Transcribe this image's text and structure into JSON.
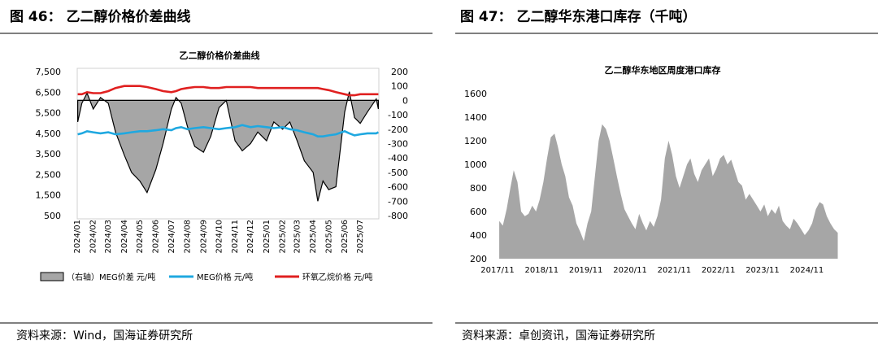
{
  "left": {
    "figure_title": "图 46： 乙二醇价格价差曲线",
    "source": "资料来源：Wind，国海证券研究所"
  },
  "right": {
    "figure_title": "图 47： 乙二醇华东港口库存（千吨）",
    "source": "资料来源：卓创资讯，国海证券研究所"
  },
  "chart_data": [
    {
      "type": "line",
      "title": "乙二醇价格价差曲线",
      "y_left_ticks": [
        "7,500",
        "6,500",
        "5,500",
        "4,500",
        "3,500",
        "2,500",
        "1,500",
        "500"
      ],
      "ylim_left": [
        500,
        7500
      ],
      "y_right_ticks": [
        "200",
        "100",
        "0",
        "-100",
        "-200",
        "-300",
        "-400",
        "-500",
        "-600",
        "-700",
        "-800"
      ],
      "ylim_right": [
        -800,
        200
      ],
      "x_ticks": [
        "2024/01",
        "2024/02",
        "2024/03",
        "2024/04",
        "2024/05",
        "2024/06",
        "2024/07",
        "2024/08",
        "2024/09",
        "2024/10",
        "2024/11",
        "2024/12",
        "2025/01",
        "2025/02",
        "2025/03",
        "2025/04",
        "2025/05",
        "2025/06",
        "2025/07"
      ],
      "x": [
        "2024-01-02",
        "2024-01-10",
        "2024-01-20",
        "2024-02-01",
        "2024-02-15",
        "2024-03-01",
        "2024-03-15",
        "2024-04-01",
        "2024-04-15",
        "2024-05-01",
        "2024-05-15",
        "2024-06-01",
        "2024-06-15",
        "2024-07-01",
        "2024-07-10",
        "2024-07-20",
        "2024-08-01",
        "2024-08-15",
        "2024-09-01",
        "2024-09-15",
        "2024-10-01",
        "2024-10-15",
        "2024-11-01",
        "2024-11-15",
        "2024-12-01",
        "2024-12-15",
        "2025-01-01",
        "2025-01-15",
        "2025-02-01",
        "2025-02-15",
        "2025-03-01",
        "2025-03-15",
        "2025-04-01",
        "2025-04-10",
        "2025-04-20",
        "2025-05-01",
        "2025-05-15",
        "2025-06-01",
        "2025-06-10",
        "2025-06-20",
        "2025-07-01",
        "2025-07-15",
        "2025-08-01",
        "2025-08-05"
      ],
      "series": [
        {
          "name": "（右轴）MEG价差 元/吨",
          "axis": "right",
          "kind": "area",
          "color": "#a6a6a6",
          "values": [
            -150,
            -20,
            50,
            -60,
            20,
            -20,
            -220,
            -380,
            -500,
            -560,
            -640,
            -480,
            -300,
            -60,
            20,
            -20,
            -180,
            -320,
            -360,
            -250,
            -50,
            0,
            -280,
            -350,
            -300,
            -220,
            -280,
            -150,
            -200,
            -150,
            -280,
            -420,
            -500,
            -700,
            -560,
            -620,
            -600,
            -80,
            60,
            -120,
            -160,
            -80,
            10,
            -60
          ]
        },
        {
          "name": "MEG价格 元/吨",
          "axis": "left",
          "kind": "line",
          "color": "#1fa8e0",
          "values": [
            4450,
            4500,
            4600,
            4550,
            4500,
            4550,
            4450,
            4500,
            4550,
            4600,
            4600,
            4650,
            4700,
            4650,
            4750,
            4800,
            4700,
            4750,
            4800,
            4750,
            4700,
            4750,
            4800,
            4900,
            4800,
            4850,
            4800,
            4750,
            4800,
            4700,
            4650,
            4550,
            4450,
            4350,
            4350,
            4400,
            4450,
            4600,
            4500,
            4400,
            4450,
            4500,
            4500,
            4550
          ]
        },
        {
          "name": "环氧乙烷价格 元/吨",
          "axis": "left",
          "kind": "line",
          "color": "#e02020",
          "values": [
            6400,
            6400,
            6500,
            6450,
            6450,
            6550,
            6700,
            6800,
            6800,
            6800,
            6750,
            6650,
            6550,
            6500,
            6550,
            6650,
            6700,
            6750,
            6750,
            6700,
            6700,
            6750,
            6750,
            6750,
            6750,
            6700,
            6700,
            6700,
            6700,
            6700,
            6700,
            6700,
            6700,
            6700,
            6650,
            6600,
            6500,
            6400,
            6350,
            6350,
            6400,
            6400,
            6400,
            6400
          ]
        }
      ],
      "legend_position": "bottom"
    },
    {
      "type": "area",
      "title": "乙二醇华东地区周度港口库存",
      "y_ticks": [
        "1600",
        "1400",
        "1200",
        "1000",
        "800",
        "600",
        "400",
        "200"
      ],
      "ylim": [
        200,
        1600
      ],
      "x_ticks": [
        "2017/11",
        "2018/11",
        "2019/11",
        "2020/11",
        "2021/11",
        "2022/11",
        "2023/11",
        "2024/11"
      ],
      "color": "#a6a6a6",
      "x": [
        "2017-11",
        "2017-12",
        "2018-01",
        "2018-02",
        "2018-03",
        "2018-04",
        "2018-05",
        "2018-06",
        "2018-07",
        "2018-08",
        "2018-09",
        "2018-10",
        "2018-11",
        "2018-12",
        "2019-01",
        "2019-02",
        "2019-03",
        "2019-04",
        "2019-05",
        "2019-06",
        "2019-07",
        "2019-08",
        "2019-09",
        "2019-10",
        "2019-11",
        "2019-12",
        "2020-01",
        "2020-02",
        "2020-03",
        "2020-04",
        "2020-05",
        "2020-06",
        "2020-07",
        "2020-08",
        "2020-09",
        "2020-10",
        "2020-11",
        "2020-12",
        "2021-01",
        "2021-02",
        "2021-03",
        "2021-04",
        "2021-05",
        "2021-06",
        "2021-07",
        "2021-08",
        "2021-09",
        "2021-10",
        "2021-11",
        "2021-12",
        "2022-01",
        "2022-02",
        "2022-03",
        "2022-04",
        "2022-05",
        "2022-06",
        "2022-07",
        "2022-08",
        "2022-09",
        "2022-10",
        "2022-11",
        "2022-12",
        "2023-01",
        "2023-02",
        "2023-03",
        "2023-04",
        "2023-05",
        "2023-06",
        "2023-07",
        "2023-08",
        "2023-09",
        "2023-10",
        "2023-11",
        "2023-12",
        "2024-01",
        "2024-02",
        "2024-03",
        "2024-04",
        "2024-05",
        "2024-06",
        "2024-07",
        "2024-08",
        "2024-09",
        "2024-10",
        "2024-11",
        "2024-12",
        "2025-01",
        "2025-02",
        "2025-03",
        "2025-04",
        "2025-05",
        "2025-06",
        "2025-07"
      ],
      "values": [
        520,
        480,
        620,
        800,
        950,
        850,
        600,
        560,
        580,
        650,
        600,
        700,
        850,
        1050,
        1230,
        1260,
        1150,
        1000,
        900,
        720,
        650,
        500,
        430,
        350,
        500,
        600,
        900,
        1200,
        1340,
        1300,
        1200,
        1050,
        900,
        750,
        620,
        560,
        500,
        450,
        580,
        500,
        440,
        520,
        470,
        560,
        700,
        1050,
        1200,
        1080,
        900,
        800,
        900,
        1000,
        1050,
        920,
        850,
        950,
        1000,
        1050,
        900,
        960,
        1050,
        1080,
        1000,
        1040,
        950,
        850,
        820,
        700,
        750,
        700,
        650,
        600,
        660,
        560,
        620,
        580,
        650,
        520,
        480,
        450,
        540,
        500,
        450,
        400,
        440,
        500,
        620,
        680,
        660,
        560,
        500,
        450,
        420
      ]
    }
  ]
}
